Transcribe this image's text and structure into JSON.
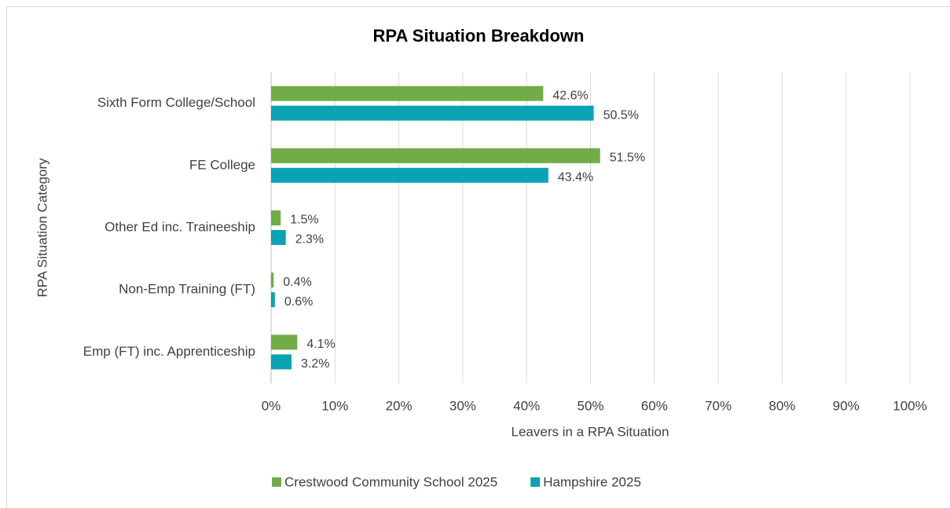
{
  "chart_data": {
    "type": "bar",
    "orientation": "horizontal",
    "title": "RPA Situation Breakdown",
    "x_label": "Leavers in a RPA Situation",
    "y_label": "RPA Situation Category",
    "categories": [
      "Sixth Form College/School",
      "FE College",
      "Other Ed inc. Traineeship",
      "Non-Emp Training (FT)",
      "Emp (FT) inc. Apprenticeship"
    ],
    "series": [
      {
        "name": "Crestwood Community School 2025",
        "color": "#70ad47",
        "values": [
          42.6,
          51.5,
          1.5,
          0.4,
          4.1
        ],
        "value_labels": [
          "42.6%",
          "51.5%",
          "1.5%",
          "0.4%",
          "4.1%"
        ]
      },
      {
        "name": "Hampshire 2025",
        "color": "#0aa3b5",
        "values": [
          50.5,
          43.4,
          2.3,
          0.6,
          3.2
        ],
        "value_labels": [
          "50.5%",
          "43.4%",
          "2.3%",
          "0.6%",
          "3.2%"
        ]
      }
    ],
    "xlim": [
      0,
      100
    ],
    "xticks": [
      {
        "value": 0,
        "label": "0%"
      },
      {
        "value": 10,
        "label": "10%"
      },
      {
        "value": 20,
        "label": "20%"
      },
      {
        "value": 30,
        "label": "30%"
      },
      {
        "value": 40,
        "label": "40%"
      },
      {
        "value": 50,
        "label": "50%"
      },
      {
        "value": 60,
        "label": "60%"
      },
      {
        "value": 70,
        "label": "70%"
      },
      {
        "value": 80,
        "label": "80%"
      },
      {
        "value": 90,
        "label": "90%"
      },
      {
        "value": 100,
        "label": "100%"
      }
    ],
    "grid": true,
    "legend": "bottom"
  }
}
